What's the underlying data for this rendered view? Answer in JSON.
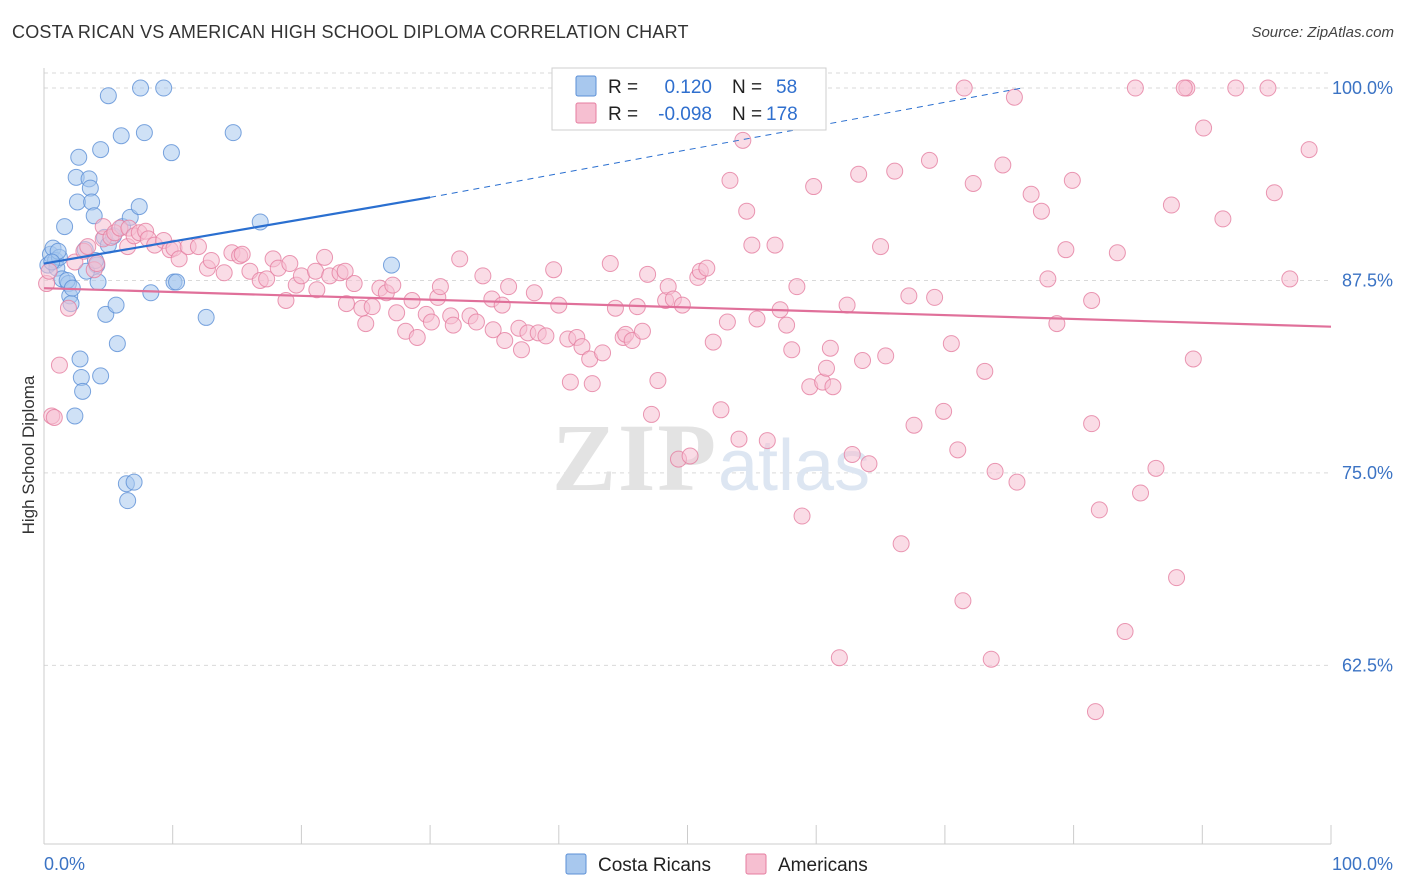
{
  "title": "COSTA RICAN VS AMERICAN HIGH SCHOOL DIPLOMA CORRELATION CHART",
  "source": "Source: ZipAtlas.com",
  "watermark": {
    "zip": "ZIP",
    "atlas": "atlas"
  },
  "colors": {
    "blue_fill": "#a8c8ee",
    "blue_stroke": "#5b8fd6",
    "blue_line": "#2a6fd0",
    "pink_fill": "#f6bfd1",
    "pink_stroke": "#e57ea0",
    "pink_line": "#e0709a",
    "tick_text": "#3b73c4",
    "grid": "#d9d9d9"
  },
  "legend": {
    "rows": [
      {
        "r_label": "R =",
        "r_value": "0.120",
        "n_label": "N =",
        "n_value": "58",
        "color": "blue"
      },
      {
        "r_label": "R =",
        "r_value": "-0.098",
        "n_label": "N =",
        "n_value": "178",
        "color": "pink"
      }
    ]
  },
  "bottom_legend": [
    {
      "label": "Costa Ricans",
      "color": "blue"
    },
    {
      "label": "Americans",
      "color": "pink"
    }
  ],
  "chart_data": {
    "type": "scatter",
    "title": "COSTA RICAN VS AMERICAN HIGH SCHOOL DIPLOMA CORRELATION CHART",
    "xlabel": "",
    "ylabel": "High School Diploma",
    "xlim": [
      0,
      100
    ],
    "ylim": [
      50.9,
      101.3
    ],
    "x_tick_labels": [
      {
        "value": 0,
        "label": "0.0%"
      },
      {
        "value": 100,
        "label": "100.0%"
      }
    ],
    "y_tick_labels": [
      {
        "value": 100,
        "label": "100.0%"
      },
      {
        "value": 87.5,
        "label": "87.5%"
      },
      {
        "value": 75,
        "label": "75.0%"
      },
      {
        "value": 62.5,
        "label": "62.5%"
      }
    ],
    "x_minor_ticks": [
      0,
      10,
      20,
      30,
      40,
      50,
      60,
      70,
      80,
      90,
      100
    ],
    "grid": true,
    "series": [
      {
        "name": "Costa Ricans",
        "color": "blue",
        "R": 0.12,
        "N": 58,
        "trend": {
          "x0": 0,
          "y0": 88.6,
          "x1": 30,
          "y1": 92.9,
          "dashed_to_x": 76,
          "dashed_to_y": 100.0
        },
        "points": [
          [
            0.3,
            88.5
          ],
          [
            0.5,
            89.2
          ],
          [
            0.7,
            89.6
          ],
          [
            0.9,
            88.8
          ],
          [
            1.0,
            88.3
          ],
          [
            1.2,
            89.0
          ],
          [
            1.4,
            87.6
          ],
          [
            1.6,
            91.0
          ],
          [
            1.9,
            87.3
          ],
          [
            2.0,
            86.5
          ],
          [
            2.1,
            86.0
          ],
          [
            2.4,
            78.7
          ],
          [
            2.5,
            94.2
          ],
          [
            2.6,
            92.6
          ],
          [
            2.7,
            95.5
          ],
          [
            2.9,
            81.2
          ],
          [
            3.0,
            80.3
          ],
          [
            3.2,
            89.5
          ],
          [
            3.5,
            94.1
          ],
          [
            3.6,
            93.5
          ],
          [
            3.7,
            92.6
          ],
          [
            3.9,
            91.7
          ],
          [
            4.1,
            88.5
          ],
          [
            4.2,
            87.4
          ],
          [
            4.4,
            81.3
          ],
          [
            4.4,
            96.0
          ],
          [
            4.7,
            90.3
          ],
          [
            4.8,
            85.3
          ],
          [
            5.0,
            89.8
          ],
          [
            5.0,
            99.5
          ],
          [
            5.4,
            90.4
          ],
          [
            5.6,
            85.9
          ],
          [
            5.7,
            83.4
          ],
          [
            6.0,
            96.9
          ],
          [
            6.1,
            91.0
          ],
          [
            6.4,
            74.3
          ],
          [
            6.5,
            73.2
          ],
          [
            6.7,
            91.6
          ],
          [
            7.0,
            74.4
          ],
          [
            7.4,
            92.3
          ],
          [
            7.5,
            100.0
          ],
          [
            7.8,
            97.1
          ],
          [
            8.3,
            86.7
          ],
          [
            9.3,
            100.0
          ],
          [
            9.9,
            95.8
          ],
          [
            10.1,
            87.4
          ],
          [
            10.3,
            87.4
          ],
          [
            12.6,
            85.1
          ],
          [
            14.7,
            97.1
          ],
          [
            16.8,
            91.3
          ],
          [
            27.0,
            88.5
          ],
          [
            2.8,
            82.4
          ],
          [
            1.1,
            89.4
          ],
          [
            3.3,
            88.1
          ],
          [
            4.0,
            88.8
          ],
          [
            1.8,
            87.5
          ],
          [
            2.2,
            87.0
          ],
          [
            0.6,
            88.7
          ]
        ]
      },
      {
        "name": "Americans",
        "color": "pink",
        "R": -0.098,
        "N": 178,
        "trend": {
          "x0": 0,
          "y0": 87.0,
          "x1": 100,
          "y1": 84.5
        },
        "points": [
          [
            0.2,
            87.3
          ],
          [
            0.4,
            88.1
          ],
          [
            0.6,
            78.7
          ],
          [
            0.8,
            78.6
          ],
          [
            1.2,
            82.0
          ],
          [
            1.9,
            85.7
          ],
          [
            2.4,
            88.7
          ],
          [
            3.1,
            89.4
          ],
          [
            3.4,
            89.7
          ],
          [
            3.9,
            88.2
          ],
          [
            4.1,
            88.6
          ],
          [
            4.6,
            90.2
          ],
          [
            4.6,
            91.0
          ],
          [
            5.2,
            90.3
          ],
          [
            5.5,
            90.6
          ],
          [
            5.9,
            90.9
          ],
          [
            6.5,
            89.7
          ],
          [
            6.6,
            90.9
          ],
          [
            7.0,
            90.4
          ],
          [
            7.4,
            90.6
          ],
          [
            7.9,
            90.7
          ],
          [
            8.1,
            90.2
          ],
          [
            8.6,
            89.8
          ],
          [
            9.3,
            90.1
          ],
          [
            9.8,
            89.5
          ],
          [
            10.1,
            89.6
          ],
          [
            10.5,
            88.9
          ],
          [
            11.2,
            89.7
          ],
          [
            12.0,
            89.7
          ],
          [
            12.7,
            88.3
          ],
          [
            13.0,
            88.8
          ],
          [
            14.0,
            88.0
          ],
          [
            14.6,
            89.3
          ],
          [
            15.2,
            89.1
          ],
          [
            15.4,
            89.2
          ],
          [
            16.0,
            88.1
          ],
          [
            16.8,
            87.5
          ],
          [
            17.3,
            87.6
          ],
          [
            17.8,
            88.9
          ],
          [
            18.2,
            88.3
          ],
          [
            18.8,
            86.2
          ],
          [
            19.1,
            88.6
          ],
          [
            19.6,
            87.2
          ],
          [
            20.0,
            87.8
          ],
          [
            21.1,
            88.1
          ],
          [
            21.2,
            86.9
          ],
          [
            21.8,
            89.0
          ],
          [
            22.2,
            87.8
          ],
          [
            23.0,
            88.0
          ],
          [
            23.4,
            88.1
          ],
          [
            23.5,
            86.0
          ],
          [
            24.1,
            87.3
          ],
          [
            24.7,
            85.7
          ],
          [
            25.0,
            84.7
          ],
          [
            25.5,
            85.8
          ],
          [
            26.1,
            87.0
          ],
          [
            26.6,
            86.7
          ],
          [
            27.1,
            87.2
          ],
          [
            27.4,
            85.4
          ],
          [
            28.1,
            84.2
          ],
          [
            28.6,
            86.2
          ],
          [
            29.0,
            83.8
          ],
          [
            29.7,
            85.3
          ],
          [
            30.1,
            84.8
          ],
          [
            30.6,
            86.4
          ],
          [
            30.8,
            87.1
          ],
          [
            31.6,
            85.2
          ],
          [
            31.8,
            84.6
          ],
          [
            32.3,
            88.9
          ],
          [
            33.1,
            85.2
          ],
          [
            33.6,
            84.8
          ],
          [
            34.1,
            87.8
          ],
          [
            34.8,
            86.3
          ],
          [
            34.9,
            84.3
          ],
          [
            35.6,
            85.9
          ],
          [
            35.8,
            83.6
          ],
          [
            36.1,
            87.1
          ],
          [
            36.9,
            84.4
          ],
          [
            37.1,
            83.0
          ],
          [
            37.6,
            84.1
          ],
          [
            38.1,
            86.7
          ],
          [
            38.4,
            84.1
          ],
          [
            39.0,
            83.9
          ],
          [
            39.6,
            88.2
          ],
          [
            40.0,
            85.9
          ],
          [
            40.7,
            83.7
          ],
          [
            40.9,
            80.9
          ],
          [
            41.4,
            83.8
          ],
          [
            41.8,
            83.2
          ],
          [
            42.4,
            82.4
          ],
          [
            42.6,
            80.8
          ],
          [
            43.4,
            82.8
          ],
          [
            44.0,
            88.6
          ],
          [
            44.4,
            85.7
          ],
          [
            45.0,
            83.8
          ],
          [
            45.2,
            84.0
          ],
          [
            45.7,
            83.6
          ],
          [
            46.1,
            85.8
          ],
          [
            46.5,
            84.2
          ],
          [
            46.9,
            87.9
          ],
          [
            47.2,
            78.8
          ],
          [
            47.7,
            81.0
          ],
          [
            48.3,
            86.2
          ],
          [
            48.5,
            87.1
          ],
          [
            48.9,
            86.3
          ],
          [
            49.3,
            75.9
          ],
          [
            49.6,
            85.9
          ],
          [
            50.2,
            76.1
          ],
          [
            50.8,
            87.7
          ],
          [
            51.0,
            88.1
          ],
          [
            51.5,
            88.3
          ],
          [
            52.0,
            83.5
          ],
          [
            52.6,
            79.1
          ],
          [
            53.1,
            84.8
          ],
          [
            53.3,
            94.0
          ],
          [
            54.0,
            77.2
          ],
          [
            54.3,
            96.6
          ],
          [
            54.6,
            92.0
          ],
          [
            55.0,
            89.8
          ],
          [
            55.4,
            85.0
          ],
          [
            56.2,
            77.1
          ],
          [
            56.8,
            89.8
          ],
          [
            57.2,
            85.6
          ],
          [
            57.7,
            84.6
          ],
          [
            58.1,
            83.0
          ],
          [
            58.5,
            87.1
          ],
          [
            58.9,
            72.2
          ],
          [
            59.5,
            80.6
          ],
          [
            59.8,
            93.6
          ],
          [
            60.5,
            80.9
          ],
          [
            60.8,
            81.8
          ],
          [
            61.1,
            83.1
          ],
          [
            61.3,
            80.6
          ],
          [
            61.8,
            63.0
          ],
          [
            62.4,
            85.9
          ],
          [
            62.8,
            76.2
          ],
          [
            63.3,
            94.4
          ],
          [
            63.6,
            82.3
          ],
          [
            64.1,
            75.6
          ],
          [
            65.0,
            89.7
          ],
          [
            65.4,
            82.6
          ],
          [
            66.1,
            94.6
          ],
          [
            66.6,
            70.4
          ],
          [
            67.2,
            86.5
          ],
          [
            67.6,
            78.1
          ],
          [
            68.8,
            95.3
          ],
          [
            69.2,
            86.4
          ],
          [
            69.9,
            79.0
          ],
          [
            70.5,
            83.4
          ],
          [
            71.0,
            76.5
          ],
          [
            71.4,
            66.7
          ],
          [
            72.2,
            93.8
          ],
          [
            73.1,
            81.6
          ],
          [
            73.6,
            62.9
          ],
          [
            73.9,
            75.1
          ],
          [
            74.5,
            95.0
          ],
          [
            75.6,
            74.4
          ],
          [
            76.7,
            93.1
          ],
          [
            77.5,
            92.0
          ],
          [
            78.0,
            87.6
          ],
          [
            78.7,
            84.7
          ],
          [
            79.4,
            89.5
          ],
          [
            79.9,
            94.0
          ],
          [
            81.4,
            78.2
          ],
          [
            81.7,
            59.5
          ],
          [
            82.0,
            72.6
          ],
          [
            83.4,
            89.3
          ],
          [
            84.0,
            64.7
          ],
          [
            85.2,
            73.7
          ],
          [
            86.4,
            75.3
          ],
          [
            87.6,
            92.4
          ],
          [
            88.0,
            68.2
          ],
          [
            89.3,
            82.4
          ],
          [
            90.1,
            97.4
          ],
          [
            91.6,
            91.5
          ],
          [
            92.6,
            100.0
          ],
          [
            95.1,
            100.0
          ],
          [
            95.6,
            93.2
          ],
          [
            96.8,
            87.6
          ],
          [
            98.3,
            96.0
          ],
          [
            71.5,
            100.0
          ],
          [
            75.4,
            99.4
          ],
          [
            84.8,
            100.0
          ],
          [
            88.8,
            100.0
          ],
          [
            88.6,
            100.0
          ],
          [
            81.4,
            86.2
          ]
        ]
      }
    ]
  }
}
